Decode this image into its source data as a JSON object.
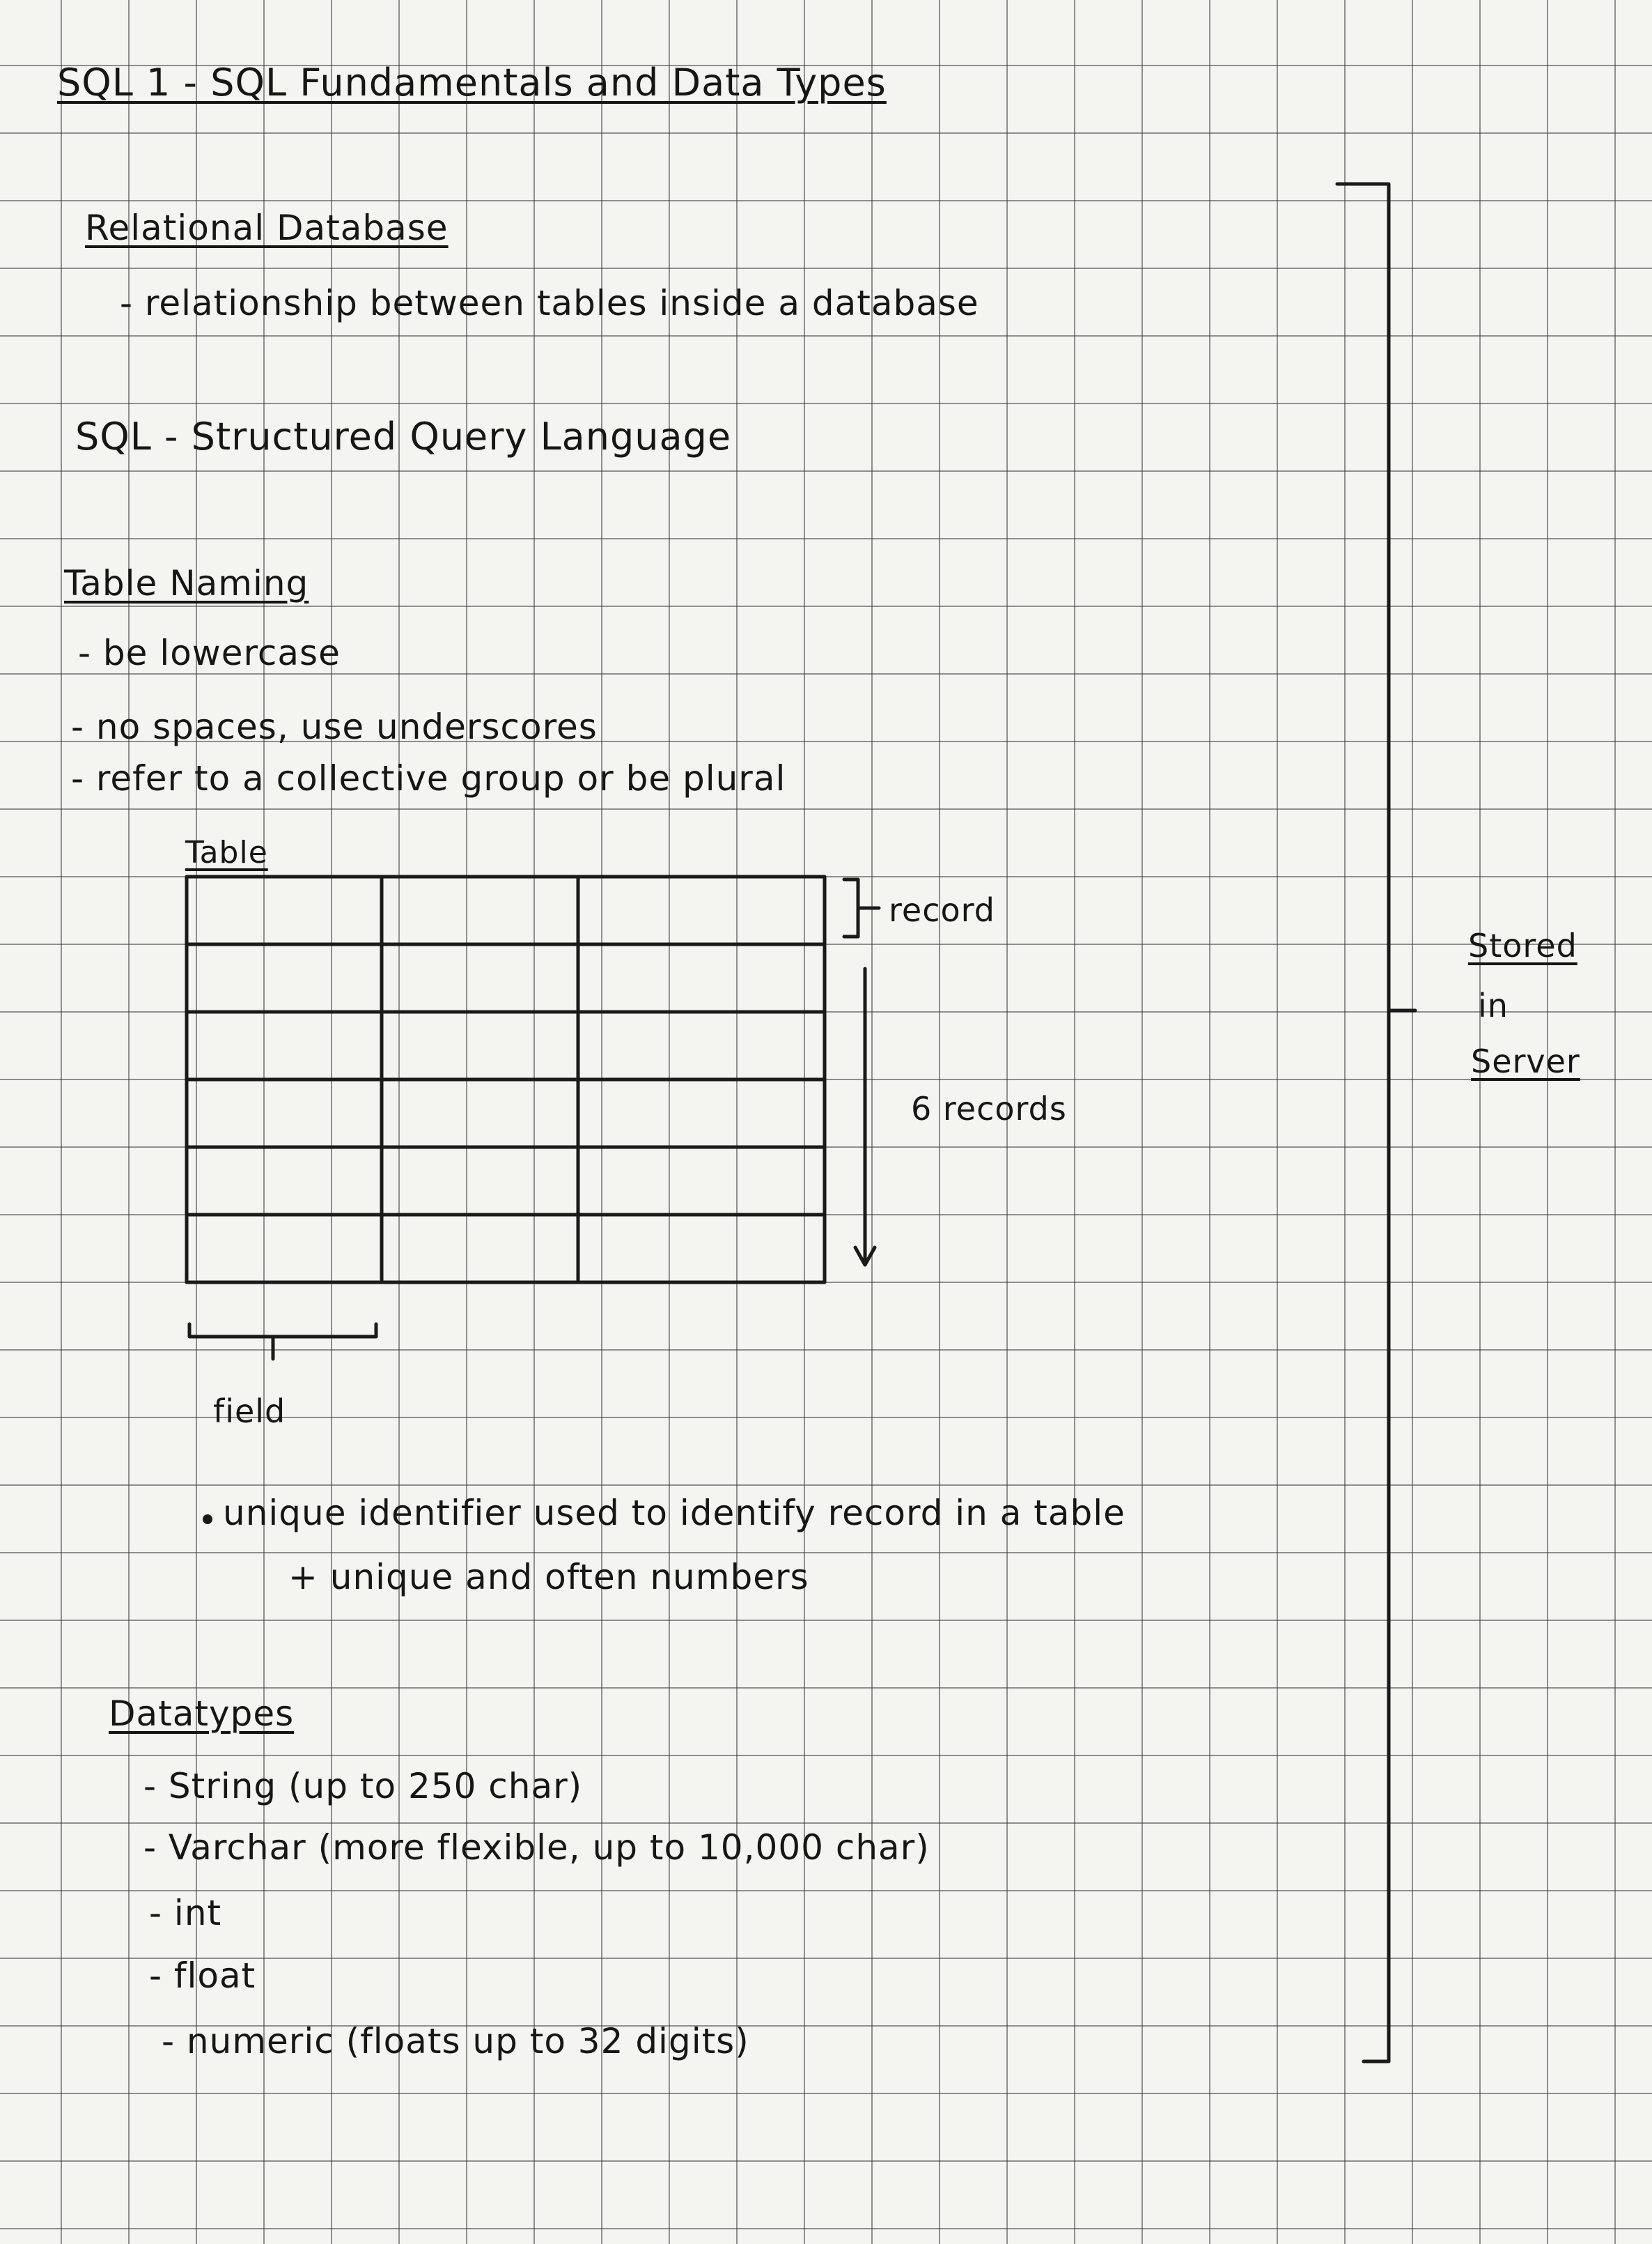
{
  "title": "SQL 1 - SQL Fundamentals and Data Types",
  "sections": {
    "relational": {
      "heading": "Relational Database",
      "bullet": "- relationship between tables inside a database"
    },
    "sql_line": "SQL - Structured Query Language",
    "naming": {
      "heading": "Table Naming",
      "items": [
        "- be lowercase",
        "- no spaces, use underscores",
        "- refer to a collective group or be plural"
      ]
    },
    "diagram": {
      "table_label": "Table",
      "record_label": "record",
      "records_label": "6 records",
      "field_label": "field",
      "stored_label": [
        "Stored",
        "in",
        "Server"
      ]
    },
    "identifier": {
      "line1": "unique identifier used to identify record in a table",
      "line2": "+ unique and often numbers"
    },
    "datatypes": {
      "heading": "Datatypes",
      "items": [
        "- String (up to 250 char)",
        "- Varchar (more flexible, up to 10,000 char)",
        "- int",
        "- float",
        "- numeric (floats up to 32 digits)"
      ]
    }
  }
}
